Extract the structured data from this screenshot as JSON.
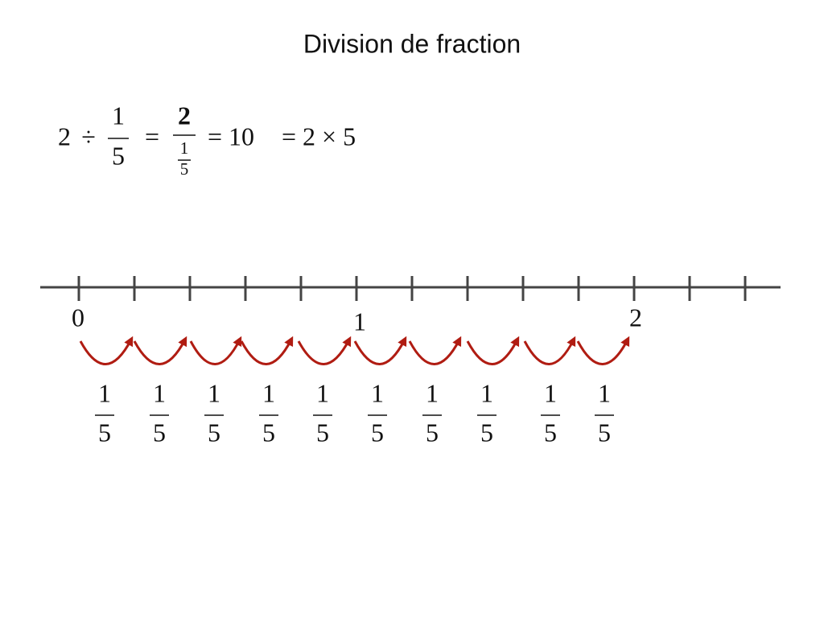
{
  "title": "Division de fraction",
  "equation": {
    "dividend": "2",
    "operator": "÷",
    "divisor": {
      "numerator": "1",
      "denominator": "5"
    },
    "equals": "=",
    "fraction": {
      "numerator": "2",
      "denominator": {
        "numerator": "1",
        "denominator": "5"
      }
    },
    "result": "= 10",
    "product": "= 2 × 5"
  },
  "number_line": {
    "labels": [
      "0",
      "1",
      "2"
    ]
  },
  "jumps": [
    {
      "numerator": "1",
      "denominator": "5"
    },
    {
      "numerator": "1",
      "denominator": "5"
    },
    {
      "numerator": "1",
      "denominator": "5"
    },
    {
      "numerator": "1",
      "denominator": "5"
    },
    {
      "numerator": "1",
      "denominator": "5"
    },
    {
      "numerator": "1",
      "denominator": "5"
    },
    {
      "numerator": "1",
      "denominator": "5"
    },
    {
      "numerator": "1",
      "denominator": "5"
    },
    {
      "numerator": "1",
      "denominator": "5"
    },
    {
      "numerator": "1",
      "denominator": "5"
    }
  ]
}
